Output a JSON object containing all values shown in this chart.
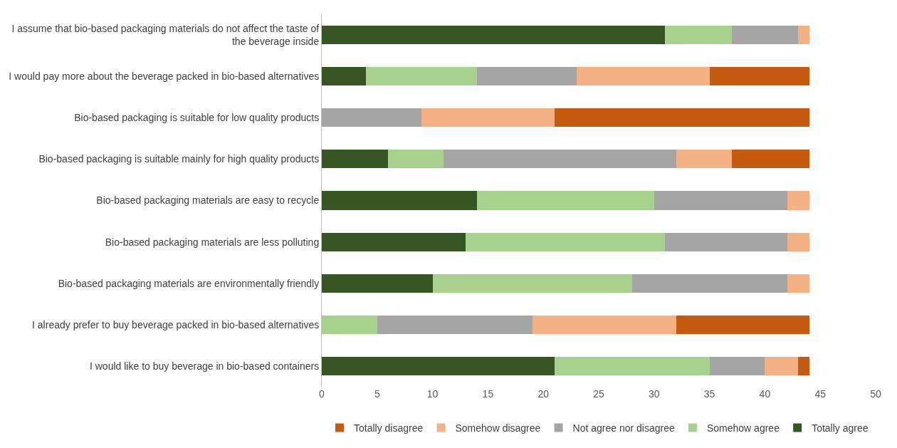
{
  "chart_data": {
    "type": "bar",
    "orientation": "horizontal",
    "stacked": true,
    "categories": [
      "I assume that bio-based packaging materials do not affect the taste of the beverage inside",
      "I would pay more about the beverage packed in bio-based alternatives",
      "Bio-based packaging is suitable for low quality products",
      "Bio-based packaging is suitable mainly for high quality products",
      "Bio-based packaging materials are easy to recycle",
      "Bio-based packaging materials are less polluting",
      "Bio-based packaging materials are environmentally friendly",
      "I already prefer to buy beverage packed in bio-based alternatives",
      "I would like to buy beverage in bio-based containers"
    ],
    "series": [
      {
        "name": "Totally agree",
        "color": "#375623",
        "values": [
          31,
          4,
          0,
          6,
          14,
          13,
          10,
          0,
          21
        ]
      },
      {
        "name": "Somehow agree",
        "color": "#a9d18e",
        "values": [
          6,
          10,
          0,
          5,
          16,
          18,
          18,
          5,
          14
        ]
      },
      {
        "name": "Not agree nor disagree",
        "color": "#a5a5a5",
        "values": [
          6,
          9,
          9,
          21,
          12,
          11,
          14,
          14,
          5
        ]
      },
      {
        "name": "Somehow disagree",
        "color": "#f4b183",
        "values": [
          1,
          12,
          12,
          5,
          2,
          2,
          2,
          13,
          3
        ]
      },
      {
        "name": "Totally disagree",
        "color": "#c55a11",
        "values": [
          0,
          9,
          23,
          7,
          0,
          0,
          0,
          12,
          1
        ]
      }
    ],
    "xlim": [
      0,
      50
    ],
    "xticks": [
      0,
      5,
      10,
      15,
      20,
      25,
      30,
      35,
      40,
      45,
      50
    ],
    "grid": false,
    "legend": "bottom"
  }
}
